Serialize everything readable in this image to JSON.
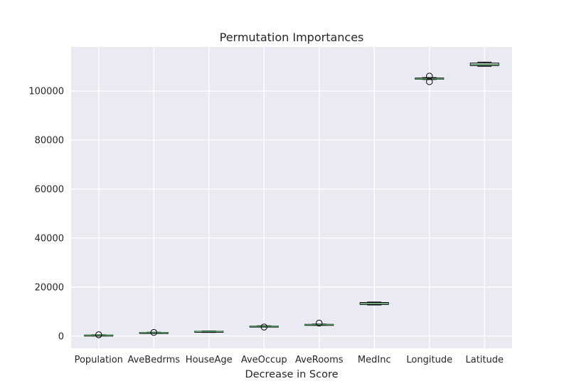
{
  "chart_data": {
    "type": "box",
    "title": "Permutation Importances",
    "xlabel": "Decrease in Score",
    "ylabel": "",
    "ylim": [
      -5000,
      118000
    ],
    "yticks": [
      0,
      20000,
      40000,
      60000,
      80000,
      100000
    ],
    "ytick_labels": [
      "0",
      "20000",
      "40000",
      "60000",
      "80000",
      "100000"
    ],
    "grid": true,
    "categories": [
      "Population",
      "AveBedrms",
      "HouseAge",
      "AveOccup",
      "AveRooms",
      "MedInc",
      "Longitude",
      "Latitude"
    ],
    "boxes": [
      {
        "name": "Population",
        "whislo": 150,
        "q1": 250,
        "med": 350,
        "q3": 450,
        "whishi": 550,
        "fliers": [
          550
        ]
      },
      {
        "name": "AveBedrms",
        "whislo": 1200,
        "q1": 1300,
        "med": 1400,
        "q3": 1500,
        "whishi": 1600,
        "fliers": [
          1500
        ]
      },
      {
        "name": "HouseAge",
        "whislo": 1500,
        "q1": 1700,
        "med": 1900,
        "q3": 2000,
        "whishi": 2100,
        "fliers": []
      },
      {
        "name": "AveOccup",
        "whislo": 3700,
        "q1": 3800,
        "med": 3950,
        "q3": 4100,
        "whishi": 4200,
        "fliers": [
          3700
        ]
      },
      {
        "name": "AveRooms",
        "whislo": 4400,
        "q1": 4500,
        "med": 4650,
        "q3": 4800,
        "whishi": 4900,
        "fliers": [
          5300
        ]
      },
      {
        "name": "MedInc",
        "whislo": 12700,
        "q1": 12900,
        "med": 13300,
        "q3": 13700,
        "whishi": 13900,
        "fliers": []
      },
      {
        "name": "Longitude",
        "whislo": 104700,
        "q1": 104800,
        "med": 105000,
        "q3": 105300,
        "whishi": 105500,
        "fliers": [
          103800,
          106100
        ]
      },
      {
        "name": "Latitude",
        "whislo": 110100,
        "q1": 110400,
        "med": 110800,
        "q3": 111400,
        "whishi": 111800,
        "fliers": []
      }
    ],
    "colors": {
      "plot_background": "#eaeaf2",
      "grid": "#ffffff",
      "box_edge": "#000000",
      "median": "#55a868",
      "text": "#262626"
    }
  }
}
